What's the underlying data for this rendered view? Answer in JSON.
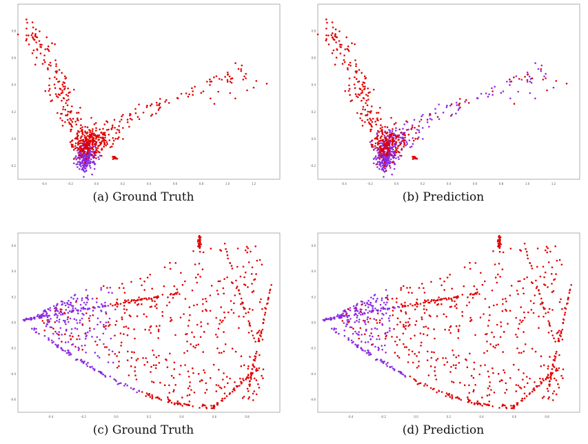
{
  "colors": {
    "class_a": "#e00000",
    "class_b": "#8a2be2",
    "frame": "#9a9a9a"
  },
  "chart_data": [
    {
      "type": "scatter",
      "caption": "(a) Ground Truth",
      "xlim": [
        -0.6,
        1.4
      ],
      "ylim": [
        -0.3,
        1.0
      ],
      "x_ticks": [
        -0.4,
        -0.2,
        0.0,
        0.2,
        0.4,
        0.6,
        0.8,
        1.0,
        1.2
      ],
      "y_ticks": [
        -0.2,
        0.0,
        0.2,
        0.4,
        0.6,
        0.8
      ],
      "dataset": "top",
      "labeling": "ground_truth"
    },
    {
      "type": "scatter",
      "caption": "(b) Prediction",
      "xlim": [
        -0.6,
        1.4
      ],
      "ylim": [
        -0.3,
        1.0
      ],
      "x_ticks": [
        -0.4,
        -0.2,
        0.0,
        0.2,
        0.4,
        0.6,
        0.8,
        1.0,
        1.2
      ],
      "y_ticks": [
        -0.2,
        0.0,
        0.2,
        0.4,
        0.6,
        0.8
      ],
      "dataset": "top",
      "labeling": "prediction"
    },
    {
      "type": "scatter",
      "caption": "(c) Ground Truth",
      "xlim": [
        -0.6,
        1.0
      ],
      "ylim": [
        -0.7,
        0.7
      ],
      "x_ticks": [
        -0.4,
        -0.2,
        0.0,
        0.2,
        0.4,
        0.6,
        0.8
      ],
      "y_ticks": [
        -0.6,
        -0.4,
        -0.2,
        0.0,
        0.2,
        0.4,
        0.6
      ],
      "dataset": "bottom",
      "labeling": "ground_truth"
    },
    {
      "type": "scatter",
      "caption": "(d) Prediction",
      "xlim": [
        -0.6,
        1.0
      ],
      "ylim": [
        -0.7,
        0.7
      ],
      "x_ticks": [
        -0.4,
        -0.2,
        0.0,
        0.2,
        0.4,
        0.6,
        0.8
      ],
      "y_ticks": [
        -0.6,
        -0.4,
        -0.2,
        0.0,
        0.2,
        0.4,
        0.6
      ],
      "dataset": "bottom",
      "labeling": "prediction"
    }
  ]
}
